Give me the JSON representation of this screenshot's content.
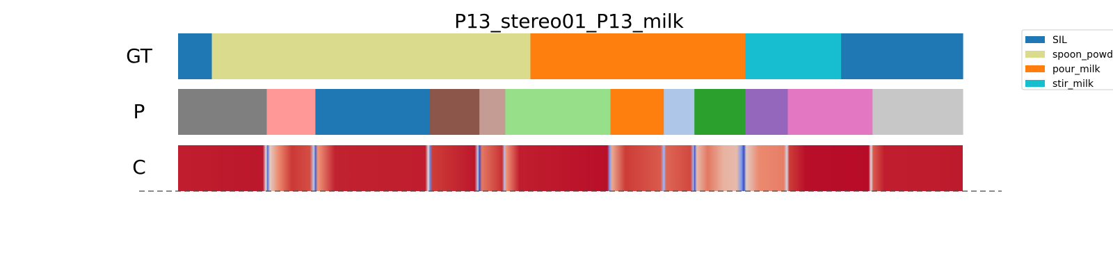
{
  "chart_data": {
    "type": "segmentation_timeline",
    "title": "P13_stereo01_P13_milk",
    "x_range": [
      0,
      100
    ],
    "rows": [
      {
        "label": "GT",
        "segments": [
          {
            "start": 0.0,
            "end": 4.3,
            "color": "#1f77b4",
            "name": "SIL"
          },
          {
            "start": 4.3,
            "end": 44.9,
            "color": "#dbdb8d",
            "name": "spoon_powder"
          },
          {
            "start": 44.9,
            "end": 72.3,
            "color": "#ff7f0e",
            "name": "pour_milk"
          },
          {
            "start": 72.3,
            "end": 84.5,
            "color": "#17becf",
            "name": "stir_milk"
          },
          {
            "start": 84.5,
            "end": 100.0,
            "color": "#1f77b4",
            "name": "SIL"
          }
        ]
      },
      {
        "label": "P",
        "segments": [
          {
            "start": 0.0,
            "end": 11.3,
            "color": "#7f7f7f"
          },
          {
            "start": 11.3,
            "end": 17.5,
            "color": "#ff9896"
          },
          {
            "start": 17.5,
            "end": 32.1,
            "color": "#1f77b4"
          },
          {
            "start": 32.1,
            "end": 38.4,
            "color": "#8c564b"
          },
          {
            "start": 38.4,
            "end": 41.7,
            "color": "#c49c94"
          },
          {
            "start": 41.7,
            "end": 55.1,
            "color": "#98df8a"
          },
          {
            "start": 55.1,
            "end": 61.9,
            "color": "#ff7f0e"
          },
          {
            "start": 61.9,
            "end": 65.8,
            "color": "#aec7e8"
          },
          {
            "start": 65.8,
            "end": 72.3,
            "color": "#2ca02c"
          },
          {
            "start": 72.3,
            "end": 77.7,
            "color": "#9467bd"
          },
          {
            "start": 77.7,
            "end": 88.5,
            "color": "#e377c2"
          },
          {
            "start": 88.5,
            "end": 100.0,
            "color": "#c7c7c7"
          }
        ]
      },
      {
        "label": "C",
        "colormap": "coolwarm",
        "confidence": [
          {
            "x": 0.0,
            "v": 0.93
          },
          {
            "x": 10.8,
            "v": 0.95
          },
          {
            "x": 11.2,
            "v": 0.5
          },
          {
            "x": 11.4,
            "v": 0.08
          },
          {
            "x": 11.7,
            "v": 0.55
          },
          {
            "x": 12.8,
            "v": 0.72
          },
          {
            "x": 14.5,
            "v": 0.86
          },
          {
            "x": 16.8,
            "v": 0.82
          },
          {
            "x": 17.3,
            "v": 0.4
          },
          {
            "x": 17.5,
            "v": 0.05
          },
          {
            "x": 17.8,
            "v": 0.7
          },
          {
            "x": 20.0,
            "v": 0.92
          },
          {
            "x": 31.5,
            "v": 0.93
          },
          {
            "x": 31.9,
            "v": 0.5
          },
          {
            "x": 32.1,
            "v": 0.15
          },
          {
            "x": 32.4,
            "v": 0.85
          },
          {
            "x": 37.8,
            "v": 0.95
          },
          {
            "x": 38.2,
            "v": 0.4
          },
          {
            "x": 38.4,
            "v": 0.0
          },
          {
            "x": 38.7,
            "v": 0.75
          },
          {
            "x": 41.3,
            "v": 0.88
          },
          {
            "x": 41.6,
            "v": 0.35
          },
          {
            "x": 41.8,
            "v": 0.7
          },
          {
            "x": 43.5,
            "v": 0.93
          },
          {
            "x": 54.7,
            "v": 0.97
          },
          {
            "x": 55.0,
            "v": 0.2
          },
          {
            "x": 55.3,
            "v": 0.65
          },
          {
            "x": 57.0,
            "v": 0.85
          },
          {
            "x": 61.5,
            "v": 0.8
          },
          {
            "x": 61.9,
            "v": 0.3
          },
          {
            "x": 62.2,
            "v": 0.78
          },
          {
            "x": 65.3,
            "v": 0.83
          },
          {
            "x": 65.7,
            "v": 0.3
          },
          {
            "x": 65.8,
            "v": 0.02
          },
          {
            "x": 66.1,
            "v": 0.6
          },
          {
            "x": 67.5,
            "v": 0.75
          },
          {
            "x": 69.5,
            "v": 0.62
          },
          {
            "x": 71.2,
            "v": 0.6
          },
          {
            "x": 71.8,
            "v": 0.2
          },
          {
            "x": 72.1,
            "v": 0.0
          },
          {
            "x": 72.4,
            "v": 0.55
          },
          {
            "x": 74.0,
            "v": 0.72
          },
          {
            "x": 77.2,
            "v": 0.74
          },
          {
            "x": 77.6,
            "v": 0.45
          },
          {
            "x": 77.9,
            "v": 0.85
          },
          {
            "x": 80.0,
            "v": 0.97
          },
          {
            "x": 88.0,
            "v": 0.98
          },
          {
            "x": 88.3,
            "v": 0.5
          },
          {
            "x": 88.6,
            "v": 0.8
          },
          {
            "x": 90.0,
            "v": 0.93
          },
          {
            "x": 100.0,
            "v": 0.94
          }
        ]
      }
    ],
    "legend": {
      "position": "top-right",
      "entries": [
        {
          "label": "SIL",
          "color": "#1f77b4"
        },
        {
          "label": "spoon_powd",
          "color": "#dbdb8d"
        },
        {
          "label": "pour_milk",
          "color": "#ff7f0e"
        },
        {
          "label": "stir_milk",
          "color": "#17becf"
        }
      ]
    },
    "baseline": "dashed"
  }
}
